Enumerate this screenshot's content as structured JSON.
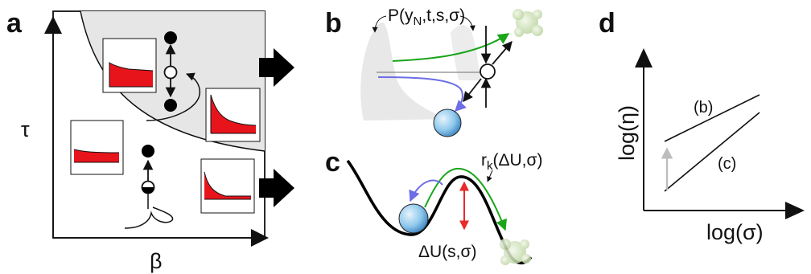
{
  "panels": {
    "a": {
      "letter": "a",
      "y_axis_label": "τ",
      "x_axis_label": "β"
    },
    "b": {
      "letter": "b",
      "distribution_label": "P(yN,t,s,σ)",
      "distribution_label_parts": {
        "pre": "P(y",
        "sub": "N",
        "post": ",t,s,σ)"
      }
    },
    "c": {
      "letter": "c",
      "rate_label_parts": {
        "pre": "r",
        "sub": "k",
        "post": "(ΔU,σ)"
      },
      "barrier_label": "ΔU(s,σ)"
    },
    "d": {
      "letter": "d",
      "y_axis_label": "log(η)",
      "x_axis_label": "log(σ)",
      "line_labels": [
        "(b)",
        "(c)"
      ]
    }
  },
  "colors": {
    "shaded_region": "#e6e6e6",
    "response_fill": "#e8141c",
    "green_path": "#1aa51a",
    "blue_path": "#6d6de6",
    "barrier_arrow": "#e82a2a",
    "sphere": "#8fc8ec",
    "ghost": "#c9deb1",
    "gray_arrow": "#bdbdbd"
  }
}
